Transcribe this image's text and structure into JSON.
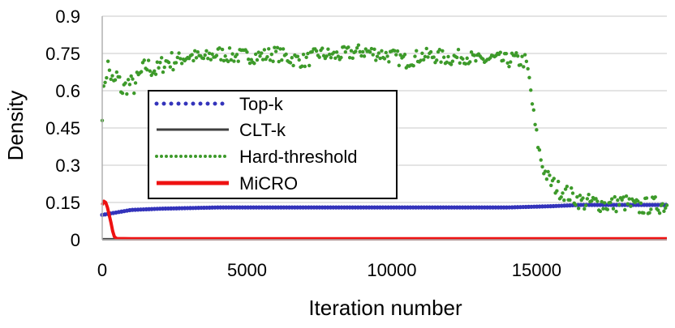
{
  "chart_data": {
    "type": "scatter",
    "title": "",
    "xlabel": "Iteration number",
    "ylabel": "Density",
    "xlim": [
      0,
      19500
    ],
    "ylim": [
      0,
      0.9
    ],
    "xticks": [
      0,
      5000,
      10000,
      15000
    ],
    "xtick_labels": [
      "0",
      "5000",
      "10000",
      "15000"
    ],
    "yticks": [
      0,
      0.15,
      0.3,
      0.45,
      0.6,
      0.75,
      0.9
    ],
    "ytick_labels": [
      "0",
      "0.15",
      "0.3",
      "0.45",
      "0.6",
      "0.75",
      "0.9"
    ],
    "grid": "horizontal",
    "legend_position": "left-center, inside plot",
    "series": [
      {
        "name": "Top-k",
        "style": "dotted",
        "color": "#3333bb",
        "x": [
          0,
          500,
          1000,
          2000,
          4000,
          6000,
          8000,
          10000,
          12000,
          14000,
          15500,
          16500,
          17500,
          18500,
          19500
        ],
        "y": [
          0.1,
          0.11,
          0.12,
          0.125,
          0.13,
          0.13,
          0.13,
          0.13,
          0.13,
          0.13,
          0.135,
          0.14,
          0.14,
          0.14,
          0.14
        ]
      },
      {
        "name": "CLT-k",
        "style": "solid",
        "color": "#404040",
        "x": [
          0,
          19500
        ],
        "y": [
          0.002,
          0.002
        ]
      },
      {
        "name": "Hard-threshold",
        "style": "dotted",
        "color": "#3d9a2a",
        "x": [
          0,
          100,
          200,
          300,
          400,
          500,
          700,
          900,
          1100,
          1300,
          1500,
          1700,
          1900,
          2100,
          2300,
          2500,
          3000,
          3500,
          4000,
          4500,
          5000,
          5500,
          6000,
          6500,
          7000,
          7500,
          8000,
          8500,
          9000,
          9500,
          10000,
          10500,
          11000,
          11500,
          12000,
          12500,
          13000,
          13500,
          14000,
          14200,
          14400,
          14600,
          14700,
          14800,
          14900,
          15000,
          15100,
          15200,
          15300,
          15500,
          15800,
          16000,
          16300,
          16600,
          17000,
          17500,
          18000,
          18500,
          19000,
          19500
        ],
        "y": [
          0.52,
          0.65,
          0.7,
          0.66,
          0.62,
          0.66,
          0.6,
          0.63,
          0.62,
          0.66,
          0.7,
          0.69,
          0.68,
          0.71,
          0.72,
          0.72,
          0.74,
          0.73,
          0.75,
          0.74,
          0.74,
          0.74,
          0.75,
          0.73,
          0.72,
          0.75,
          0.74,
          0.75,
          0.76,
          0.75,
          0.74,
          0.72,
          0.74,
          0.74,
          0.73,
          0.74,
          0.72,
          0.73,
          0.72,
          0.73,
          0.72,
          0.72,
          0.68,
          0.6,
          0.5,
          0.42,
          0.35,
          0.3,
          0.27,
          0.23,
          0.2,
          0.19,
          0.17,
          0.15,
          0.15,
          0.14,
          0.15,
          0.13,
          0.14,
          0.14
        ]
      },
      {
        "name": "MiCRO",
        "style": "solid",
        "color": "#ee1111",
        "x": [
          0,
          60,
          120,
          180,
          240,
          300,
          360,
          420,
          500,
          1000,
          2000,
          19500
        ],
        "y": [
          0.14,
          0.155,
          0.15,
          0.13,
          0.1,
          0.07,
          0.035,
          0.012,
          0.005,
          0.004,
          0.004,
          0.004
        ]
      }
    ]
  }
}
